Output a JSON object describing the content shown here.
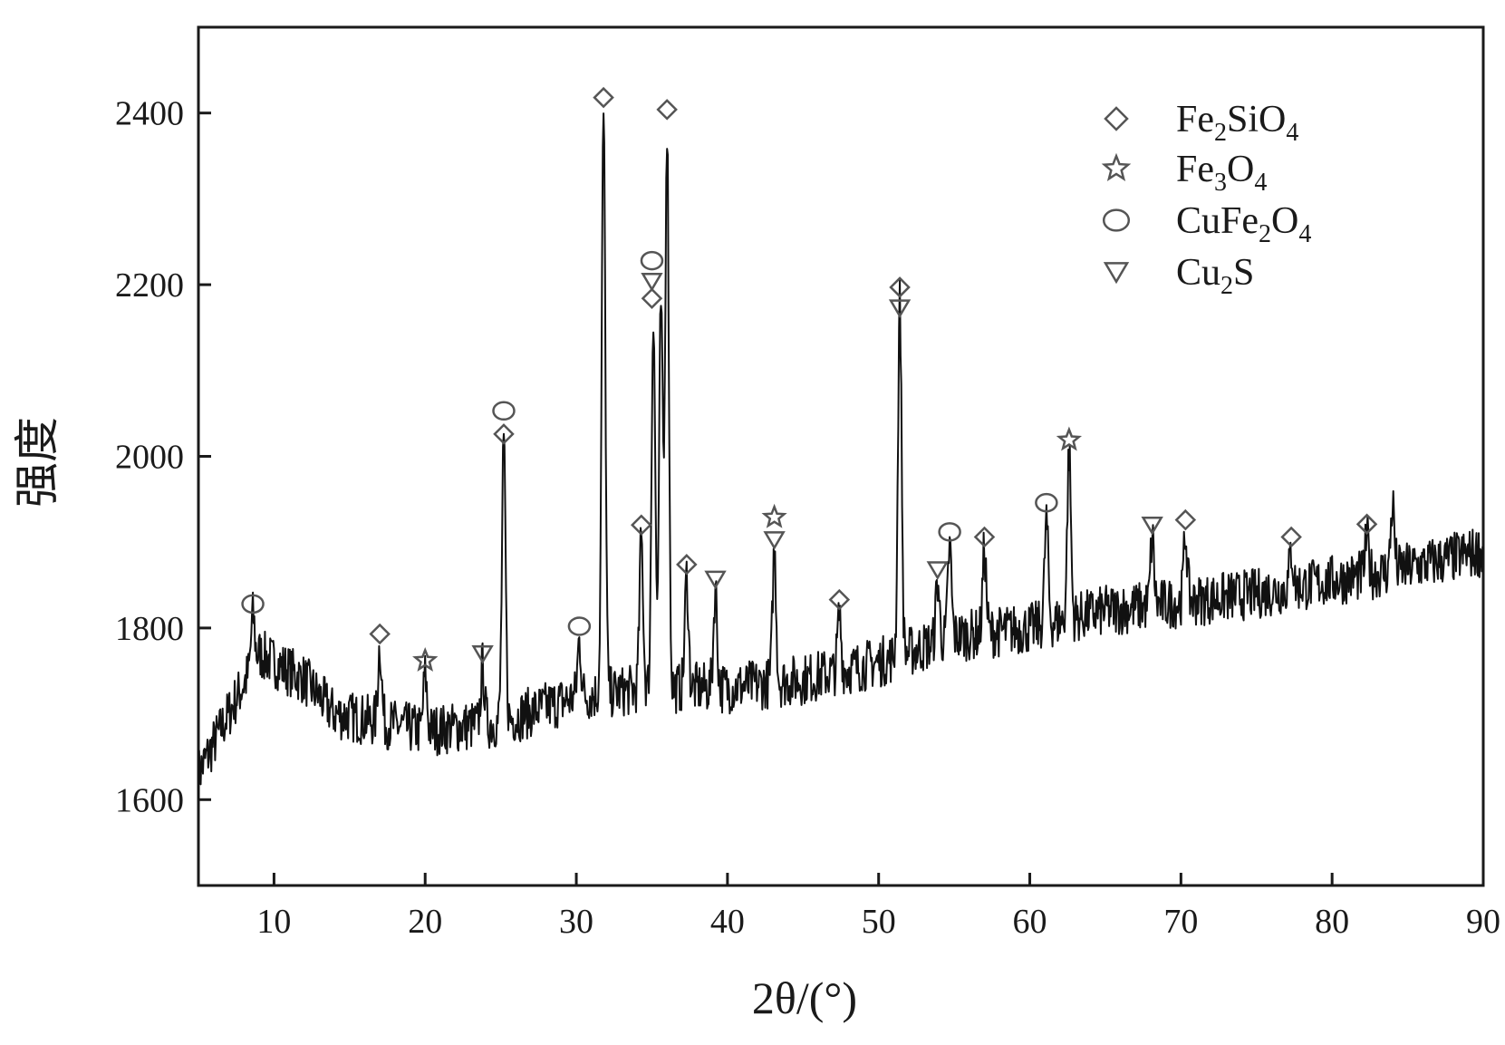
{
  "chart_data": {
    "type": "line",
    "xlabel": "2θ/(°)",
    "ylabel": "强度",
    "xlim": [
      5,
      90
    ],
    "ylim": [
      1500,
      2500
    ],
    "x_ticks": [
      10,
      20,
      30,
      40,
      50,
      60,
      70,
      80,
      90
    ],
    "y_ticks": [
      1600,
      1800,
      2000,
      2200,
      2400
    ],
    "grid": false,
    "legend_position": "top-right",
    "legend": [
      {
        "marker": "diamond",
        "main": "Fe",
        "sub1": "2",
        "mid": "SiO",
        "sub2": "4"
      },
      {
        "marker": "star",
        "main": "Fe",
        "sub1": "3",
        "mid": "O",
        "sub2": "4"
      },
      {
        "marker": "circle",
        "main": "CuFe",
        "sub1": "2",
        "mid": "O",
        "sub2": "4"
      },
      {
        "marker": "triangle-down",
        "main": "Cu",
        "sub1": "2",
        "mid": "S",
        "sub2": ""
      }
    ],
    "series": [
      {
        "baseline_points": [
          [
            5,
            1630
          ],
          [
            7,
            1700
          ],
          [
            9,
            1770
          ],
          [
            10,
            1760
          ],
          [
            12,
            1740
          ],
          [
            14,
            1700
          ],
          [
            20,
            1680
          ],
          [
            25,
            1690
          ],
          [
            30,
            1720
          ],
          [
            35,
            1730
          ],
          [
            40,
            1730
          ],
          [
            45,
            1740
          ],
          [
            50,
            1760
          ],
          [
            55,
            1790
          ],
          [
            60,
            1800
          ],
          [
            65,
            1820
          ],
          [
            70,
            1830
          ],
          [
            75,
            1840
          ],
          [
            80,
            1855
          ],
          [
            85,
            1870
          ],
          [
            90,
            1890
          ]
        ],
        "noise_amplitude": 30,
        "peaks": [
          {
            "x": 8.6,
            "y": 1815
          },
          {
            "x": 17.0,
            "y": 1780
          },
          {
            "x": 20.0,
            "y": 1745
          },
          {
            "x": 23.8,
            "y": 1755
          },
          {
            "x": 25.2,
            "y": 2010
          },
          {
            "x": 30.2,
            "y": 1785
          },
          {
            "x": 31.8,
            "y": 2400
          },
          {
            "x": 34.3,
            "y": 1905
          },
          {
            "x": 35.1,
            "y": 2170
          },
          {
            "x": 35.6,
            "y": 2175
          },
          {
            "x": 36.0,
            "y": 2385
          },
          {
            "x": 37.3,
            "y": 1860
          },
          {
            "x": 39.2,
            "y": 1845
          },
          {
            "x": 43.1,
            "y": 1890
          },
          {
            "x": 47.4,
            "y": 1815
          },
          {
            "x": 51.4,
            "y": 2180
          },
          {
            "x": 53.9,
            "y": 1855
          },
          {
            "x": 54.7,
            "y": 1895
          },
          {
            "x": 57.0,
            "y": 1890
          },
          {
            "x": 61.1,
            "y": 1925
          },
          {
            "x": 62.6,
            "y": 2005
          },
          {
            "x": 68.1,
            "y": 1905
          },
          {
            "x": 70.3,
            "y": 1910
          },
          {
            "x": 77.3,
            "y": 1890
          },
          {
            "x": 82.3,
            "y": 1905
          },
          {
            "x": 84.0,
            "y": 1945
          }
        ]
      }
    ],
    "peak_markers": [
      {
        "x": 8.6,
        "y": 1828,
        "marker": "circle"
      },
      {
        "x": 17.0,
        "y": 1793,
        "marker": "diamond"
      },
      {
        "x": 20.0,
        "y": 1762,
        "marker": "star"
      },
      {
        "x": 23.8,
        "y": 1770,
        "marker": "triangle-down"
      },
      {
        "x": 25.2,
        "y": 2026,
        "marker": "diamond"
      },
      {
        "x": 25.2,
        "y": 2053,
        "marker": "circle"
      },
      {
        "x": 30.2,
        "y": 1802,
        "marker": "circle"
      },
      {
        "x": 31.8,
        "y": 2418,
        "marker": "diamond"
      },
      {
        "x": 34.3,
        "y": 1920,
        "marker": "diamond"
      },
      {
        "x": 35.0,
        "y": 2184,
        "marker": "diamond"
      },
      {
        "x": 35.0,
        "y": 2204,
        "marker": "triangle-down"
      },
      {
        "x": 35.0,
        "y": 2228,
        "marker": "circle"
      },
      {
        "x": 36.0,
        "y": 2404,
        "marker": "diamond"
      },
      {
        "x": 37.3,
        "y": 1874,
        "marker": "diamond"
      },
      {
        "x": 39.2,
        "y": 1857,
        "marker": "triangle-down"
      },
      {
        "x": 43.1,
        "y": 1903,
        "marker": "triangle-down"
      },
      {
        "x": 43.1,
        "y": 1929,
        "marker": "star"
      },
      {
        "x": 47.4,
        "y": 1833,
        "marker": "diamond"
      },
      {
        "x": 51.4,
        "y": 2173,
        "marker": "triangle-down"
      },
      {
        "x": 51.4,
        "y": 2197,
        "marker": "diamond"
      },
      {
        "x": 53.9,
        "y": 1868,
        "marker": "triangle-down"
      },
      {
        "x": 54.7,
        "y": 1912,
        "marker": "circle"
      },
      {
        "x": 57.0,
        "y": 1906,
        "marker": "diamond"
      },
      {
        "x": 61.1,
        "y": 1946,
        "marker": "circle"
      },
      {
        "x": 62.6,
        "y": 2019,
        "marker": "star"
      },
      {
        "x": 68.1,
        "y": 1920,
        "marker": "triangle-down"
      },
      {
        "x": 70.3,
        "y": 1926,
        "marker": "diamond"
      },
      {
        "x": 77.3,
        "y": 1906,
        "marker": "diamond"
      },
      {
        "x": 82.3,
        "y": 1921,
        "marker": "diamond"
      }
    ]
  }
}
